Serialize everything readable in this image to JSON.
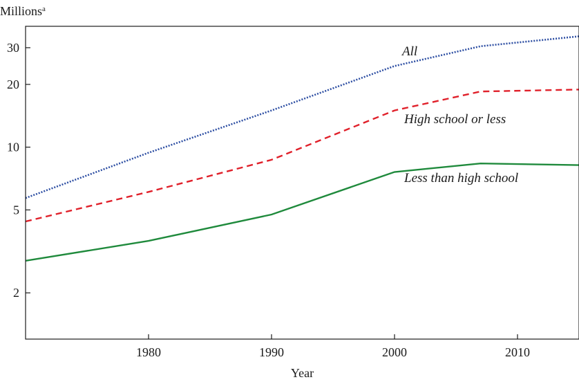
{
  "chart_data": {
    "type": "line",
    "ylabel": "Millions",
    "ylabel_superscript": "a",
    "xlabel": "Year",
    "y_scale": "log",
    "ylim": [
      1.2,
      38
    ],
    "xlim": [
      1970,
      2015
    ],
    "x_ticks": [
      1980,
      1990,
      2000,
      2010
    ],
    "y_ticks": [
      2,
      5,
      10,
      20,
      30
    ],
    "grid": false,
    "legend": "inline labels",
    "series": [
      {
        "name": "All",
        "style": "dotted",
        "color": "#2e4fa3",
        "x": [
          1970,
          1980,
          1990,
          2000,
          2007,
          2015
        ],
        "values": [
          5.7,
          9.4,
          15.0,
          24.5,
          30.5,
          34.0
        ]
      },
      {
        "name": "High school or less",
        "style": "dashed",
        "color": "#e0202a",
        "x": [
          1970,
          1980,
          1990,
          2000,
          2007,
          2015
        ],
        "values": [
          4.4,
          6.1,
          8.7,
          15.0,
          18.5,
          18.9
        ]
      },
      {
        "name": "Less than high school",
        "style": "solid",
        "color": "#1f8a3c",
        "x": [
          1970,
          1980,
          1990,
          2000,
          2007,
          2015
        ],
        "values": [
          2.85,
          3.55,
          4.75,
          7.6,
          8.35,
          8.2
        ]
      }
    ]
  }
}
